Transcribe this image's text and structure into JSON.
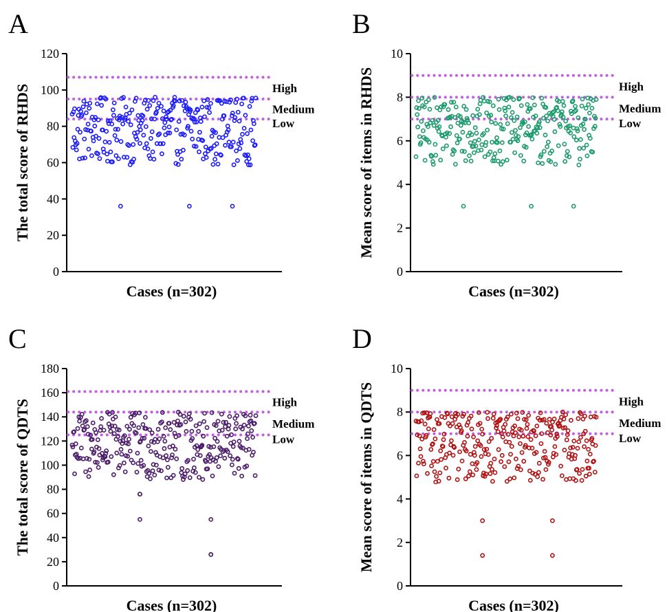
{
  "chart_data": [
    {
      "panel_letter": "A",
      "type": "scatter",
      "ylabel": "The total score of RHDS",
      "xlabel": "Cases (n=302)",
      "ylim": [
        0,
        120
      ],
      "yticks": [
        0,
        20,
        40,
        60,
        80,
        100,
        120
      ],
      "marker_color": "#1a1aff",
      "threshold_color": "#c060e0",
      "thresholds": [
        107,
        95,
        84
      ],
      "threshold_labels": [
        "High",
        "Medium",
        "Low"
      ],
      "n_cases": 302,
      "y_range_of_points": [
        52,
        96
      ],
      "outliers": [
        36,
        36,
        36
      ]
    },
    {
      "panel_letter": "B",
      "type": "scatter",
      "ylabel": "Mean score of items in RHDS",
      "xlabel": "Cases (n=302)",
      "ylim": [
        0,
        10
      ],
      "yticks": [
        0,
        2,
        4,
        6,
        8,
        10
      ],
      "marker_color": "#1a9a6a",
      "threshold_color": "#c060e0",
      "thresholds": [
        9,
        8,
        7
      ],
      "threshold_labels": [
        "High",
        "Medium",
        "Low"
      ],
      "n_cases": 302,
      "y_range_of_points": [
        4.3,
        8.0
      ],
      "outliers": [
        3.0,
        3.0,
        3.0
      ]
    },
    {
      "panel_letter": "C",
      "type": "scatter",
      "ylabel": "The total score of QDTS",
      "xlabel": "Cases (n=302)",
      "ylim": [
        0,
        180
      ],
      "yticks": [
        0,
        20,
        40,
        60,
        80,
        100,
        120,
        140,
        160,
        180
      ],
      "marker_color": "#4a1a6a",
      "threshold_color": "#c060e0",
      "thresholds": [
        161,
        144,
        125
      ],
      "threshold_labels": [
        "High",
        "Medium",
        "Low"
      ],
      "n_cases": 302,
      "y_range_of_points": [
        76,
        144
      ],
      "outliers": [
        76,
        76,
        55,
        26,
        55,
        26
      ]
    },
    {
      "panel_letter": "D",
      "type": "scatter",
      "ylabel": "Mean score of items in QDTS",
      "xlabel": "Cases (n=302)",
      "ylim": [
        0,
        10
      ],
      "yticks": [
        0,
        2,
        4,
        6,
        8,
        10
      ],
      "marker_color": "#b01010",
      "threshold_color": "#c060e0",
      "thresholds": [
        9,
        8,
        7
      ],
      "threshold_labels": [
        "High",
        "Medium",
        "Low"
      ],
      "n_cases": 302,
      "y_range_of_points": [
        4.2,
        8.0
      ],
      "outliers": [
        3.0,
        1.4,
        3.0,
        1.4
      ]
    }
  ]
}
